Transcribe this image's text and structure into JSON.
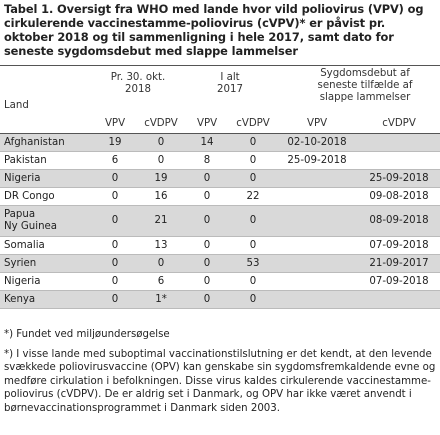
{
  "title": "Tabel 1. Oversigt fra WHO med lande hvor vild poliovirus (VPV) og cirkulerende vaccinestamme-poliovirus (cVPV)* er påvist pr. oktober 2018 og til sammenligning i hele 2017, samt dato for seneste sygdomsdebut med slappe lammelser",
  "header": {
    "land": "Land",
    "group1": "Pr. 30. okt. 2018",
    "group2": "I alt 2017",
    "group3": "Sygdomsdebut af seneste tilfælde af slappe lammelser",
    "sub": [
      "VPV",
      "cVDPV",
      "VPV",
      "cVDPV",
      "VPV",
      "cVDPV"
    ]
  },
  "rows": [
    {
      "country": "Afghanistan",
      "v1": "19",
      "c1": "0",
      "v2": "14",
      "c2": "0",
      "d1": "02-10-2018",
      "d2": "",
      "shade": true
    },
    {
      "country": "Pakistan",
      "v1": "6",
      "c1": "0",
      "v2": "8",
      "c2": "0",
      "d1": "25-09-2018",
      "d2": "",
      "shade": false
    },
    {
      "country": "Nigeria",
      "v1": "0",
      "c1": "19",
      "v2": "0",
      "c2": "0",
      "d1": "",
      "d2": "25-09-2018",
      "shade": true
    },
    {
      "country": "DR Congo",
      "v1": "0",
      "c1": "16",
      "v2": "0",
      "c2": "22",
      "d1": "",
      "d2": "09-08-2018",
      "shade": false
    },
    {
      "country": "Papua\nNy Guinea",
      "v1": "0",
      "c1": "21",
      "v2": "0",
      "c2": "0",
      "d1": "",
      "d2": "08-09-2018",
      "shade": true
    },
    {
      "country": "Somalia",
      "v1": "0",
      "c1": "13",
      "v2": "0",
      "c2": "0",
      "d1": "",
      "d2": "07-09-2018",
      "shade": false
    },
    {
      "country": "Syrien",
      "v1": "0",
      "c1": "0",
      "v2": "0",
      "c2": "53",
      "d1": "",
      "d2": "21-09-2017",
      "shade": true
    },
    {
      "country": "Nigeria",
      "v1": "0",
      "c1": "6",
      "v2": "0",
      "c2": "0",
      "d1": "",
      "d2": "07-09-2018",
      "shade": false
    },
    {
      "country": "Kenya",
      "v1": "0",
      "c1": "1*",
      "v2": "0",
      "c2": "0",
      "d1": "",
      "d2": "",
      "shade": true
    }
  ],
  "footnote1": "*) Fundet ved miljøundersøgelse",
  "footnote2": "*) I visse lande med suboptimal vaccinationstilslutning er det kendt, at den levende svækkede poliovirusvaccine (OPV) kan genskabe sin sygdomsfremkaldende evne og medføre cirkulation i befolkningen. Disse virus kaldes cirkulerende vaccinestamme-poliovirus (cVDPV). De er aldrig set i Danmark, og OPV har ikke været anvendt i børnevaccinationsprogrammet i Danmark siden 2003.",
  "colors": {
    "shade": "#d9d9d9",
    "rule": "#555555"
  }
}
